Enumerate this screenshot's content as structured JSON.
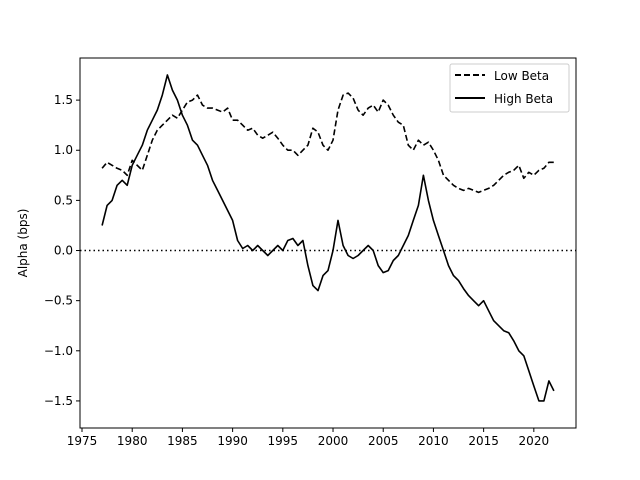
{
  "chart_data": {
    "type": "line",
    "title": "",
    "xlabel": "",
    "ylabel": "Alpha (bps)",
    "xlim": [
      1974.8,
      2024.2
    ],
    "ylim": [
      -1.77,
      1.92
    ],
    "xticks": [
      1975,
      1980,
      1985,
      1990,
      1995,
      2000,
      2005,
      2010,
      2015,
      2020
    ],
    "xtick_labels": [
      "1975",
      "1980",
      "1985",
      "1990",
      "1995",
      "2000",
      "2005",
      "2010",
      "2015",
      "2020"
    ],
    "yticks": [
      -1.5,
      -1.0,
      -0.5,
      0.0,
      0.5,
      1.0,
      1.5
    ],
    "ytick_labels": [
      "−1.5",
      "−1.0",
      "−0.5",
      "0.0",
      "0.5",
      "1.0",
      "1.5"
    ],
    "reference_line": {
      "y": 0.0,
      "style": "dotted",
      "color": "#000000"
    },
    "grid": false,
    "legend_position": "top-right",
    "series": [
      {
        "name": "Low Beta",
        "style": "dashed",
        "color": "#000000",
        "x": [
          1977.0,
          1977.5,
          1978.0,
          1978.5,
          1979.0,
          1979.5,
          1980.0,
          1980.5,
          1981.0,
          1981.5,
          1982.0,
          1982.5,
          1983.0,
          1983.5,
          1984.0,
          1984.5,
          1985.0,
          1985.5,
          1986.0,
          1986.5,
          1987.0,
          1987.5,
          1988.0,
          1988.5,
          1989.0,
          1989.5,
          1990.0,
          1990.5,
          1991.0,
          1991.5,
          1992.0,
          1992.5,
          1993.0,
          1993.5,
          1994.0,
          1994.5,
          1995.0,
          1995.5,
          1996.0,
          1996.5,
          1997.0,
          1997.5,
          1998.0,
          1998.5,
          1999.0,
          1999.5,
          2000.0,
          2000.5,
          2001.0,
          2001.5,
          2002.0,
          2002.5,
          2003.0,
          2003.5,
          2004.0,
          2004.5,
          2005.0,
          2005.5,
          2006.0,
          2006.5,
          2007.0,
          2007.5,
          2008.0,
          2008.5,
          2009.0,
          2009.5,
          2010.0,
          2010.5,
          2011.0,
          2011.5,
          2012.0,
          2012.5,
          2013.0,
          2013.5,
          2014.0,
          2014.5,
          2015.0,
          2015.5,
          2016.0,
          2016.5,
          2017.0,
          2017.5,
          2018.0,
          2018.5,
          2019.0,
          2019.5,
          2020.0,
          2020.5,
          2021.0,
          2021.5,
          2022.0
        ],
        "y": [
          0.82,
          0.88,
          0.85,
          0.82,
          0.8,
          0.75,
          0.9,
          0.85,
          0.8,
          0.95,
          1.1,
          1.2,
          1.25,
          1.3,
          1.35,
          1.32,
          1.4,
          1.48,
          1.5,
          1.55,
          1.45,
          1.42,
          1.42,
          1.4,
          1.38,
          1.42,
          1.3,
          1.3,
          1.25,
          1.2,
          1.22,
          1.15,
          1.12,
          1.15,
          1.18,
          1.12,
          1.05,
          1.0,
          1.0,
          0.95,
          1.0,
          1.05,
          1.22,
          1.18,
          1.05,
          1.0,
          1.1,
          1.4,
          1.55,
          1.57,
          1.52,
          1.4,
          1.35,
          1.42,
          1.45,
          1.38,
          1.5,
          1.45,
          1.35,
          1.28,
          1.25,
          1.05,
          1.0,
          1.1,
          1.05,
          1.08,
          1.0,
          0.9,
          0.75,
          0.7,
          0.65,
          0.62,
          0.6,
          0.62,
          0.6,
          0.58,
          0.6,
          0.62,
          0.65,
          0.7,
          0.75,
          0.78,
          0.8,
          0.85,
          0.72,
          0.78,
          0.75,
          0.8,
          0.82,
          0.88,
          0.88
        ]
      },
      {
        "name": "High Beta",
        "style": "solid",
        "color": "#000000",
        "x": [
          1977.0,
          1977.5,
          1978.0,
          1978.5,
          1979.0,
          1979.5,
          1980.0,
          1980.5,
          1981.0,
          1981.5,
          1982.0,
          1982.5,
          1983.0,
          1983.5,
          1984.0,
          1984.5,
          1985.0,
          1985.5,
          1986.0,
          1986.5,
          1987.0,
          1987.5,
          1988.0,
          1988.5,
          1989.0,
          1989.5,
          1990.0,
          1990.5,
          1991.0,
          1991.5,
          1992.0,
          1992.5,
          1993.0,
          1993.5,
          1994.0,
          1994.5,
          1995.0,
          1995.5,
          1996.0,
          1996.5,
          1997.0,
          1997.5,
          1998.0,
          1998.5,
          1999.0,
          1999.5,
          2000.0,
          2000.5,
          2001.0,
          2001.5,
          2002.0,
          2002.5,
          2003.0,
          2003.5,
          2004.0,
          2004.5,
          2005.0,
          2005.5,
          2006.0,
          2006.5,
          2007.0,
          2007.5,
          2008.0,
          2008.5,
          2009.0,
          2009.5,
          2010.0,
          2010.5,
          2011.0,
          2011.5,
          2012.0,
          2012.5,
          2013.0,
          2013.5,
          2014.0,
          2014.5,
          2015.0,
          2015.5,
          2016.0,
          2016.5,
          2017.0,
          2017.5,
          2018.0,
          2018.5,
          2019.0,
          2019.5,
          2020.0,
          2020.5,
          2021.0,
          2021.5,
          2022.0
        ],
        "y": [
          0.25,
          0.45,
          0.5,
          0.65,
          0.7,
          0.65,
          0.85,
          0.95,
          1.05,
          1.2,
          1.3,
          1.4,
          1.55,
          1.75,
          1.6,
          1.5,
          1.35,
          1.25,
          1.1,
          1.05,
          0.95,
          0.85,
          0.7,
          0.6,
          0.5,
          0.4,
          0.3,
          0.1,
          0.02,
          0.05,
          0.0,
          0.05,
          0.0,
          -0.05,
          0.0,
          0.05,
          0.0,
          0.1,
          0.12,
          0.05,
          0.1,
          -0.15,
          -0.35,
          -0.4,
          -0.25,
          -0.2,
          0.0,
          0.3,
          0.05,
          -0.05,
          -0.08,
          -0.05,
          0.0,
          0.05,
          0.0,
          -0.15,
          -0.22,
          -0.2,
          -0.1,
          -0.05,
          0.05,
          0.15,
          0.3,
          0.45,
          0.75,
          0.5,
          0.3,
          0.15,
          0.0,
          -0.15,
          -0.25,
          -0.3,
          -0.38,
          -0.45,
          -0.5,
          -0.55,
          -0.5,
          -0.6,
          -0.7,
          -0.75,
          -0.8,
          -0.82,
          -0.9,
          -1.0,
          -1.05,
          -1.2,
          -1.35,
          -1.5,
          -1.5,
          -1.3,
          -1.4
        ]
      }
    ]
  }
}
